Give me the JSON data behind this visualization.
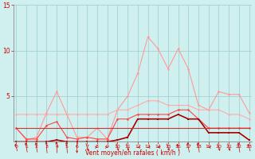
{
  "x": [
    0,
    1,
    2,
    3,
    4,
    5,
    6,
    7,
    8,
    9,
    10,
    11,
    12,
    13,
    14,
    15,
    16,
    17,
    18,
    19,
    20,
    21,
    22,
    23
  ],
  "series_gust": [
    1.5,
    0.2,
    0.5,
    3.2,
    5.5,
    3.0,
    0.5,
    0.5,
    1.5,
    0.3,
    3.5,
    5.0,
    7.5,
    11.5,
    10.2,
    8.0,
    10.2,
    8.0,
    4.0,
    3.5,
    5.5,
    5.2,
    5.2,
    3.2
  ],
  "series_mean": [
    3.0,
    3.0,
    3.0,
    3.0,
    3.0,
    3.0,
    3.0,
    3.0,
    3.0,
    3.0,
    3.5,
    3.5,
    4.0,
    4.5,
    4.5,
    4.0,
    4.0,
    4.0,
    3.5,
    3.5,
    3.5,
    3.0,
    3.0,
    2.5
  ],
  "series_wind": [
    1.5,
    0.3,
    0.3,
    1.8,
    2.2,
    0.5,
    0.3,
    0.5,
    0.3,
    0.3,
    2.5,
    2.5,
    3.0,
    3.0,
    3.0,
    3.0,
    3.5,
    3.5,
    2.5,
    1.5,
    1.5,
    1.5,
    1.5,
    1.5
  ],
  "series_dark": [
    0.0,
    0.0,
    0.0,
    0.0,
    0.2,
    0.0,
    0.0,
    0.0,
    0.0,
    0.0,
    0.2,
    0.5,
    2.5,
    2.5,
    2.5,
    2.5,
    3.0,
    2.5,
    2.5,
    1.0,
    1.0,
    1.0,
    1.0,
    0.2
  ],
  "series_flat": [
    1.5,
    1.5,
    1.5,
    1.5,
    1.5,
    1.5,
    1.5,
    1.5,
    1.5,
    1.5,
    1.5,
    1.5,
    1.5,
    1.5,
    1.5,
    1.5,
    1.5,
    1.5,
    1.5,
    1.5,
    1.5,
    1.5,
    1.5,
    1.5
  ],
  "color_gust": "#ff9999",
  "color_mean": "#ffaaaa",
  "color_wind": "#ff4444",
  "color_dark": "#aa0000",
  "color_flat": "#cc3333",
  "bg_color": "#d0f0f0",
  "grid_color": "#99cccc",
  "text_color": "#cc0000",
  "xlabel": "Vent moyen/en rafales ( km/h )",
  "ylim": [
    0,
    15
  ],
  "yticks": [
    5,
    10,
    15
  ],
  "xticks": [
    0,
    1,
    2,
    3,
    4,
    5,
    6,
    7,
    8,
    9,
    10,
    11,
    12,
    13,
    14,
    15,
    16,
    17,
    18,
    19,
    20,
    21,
    22,
    23
  ]
}
